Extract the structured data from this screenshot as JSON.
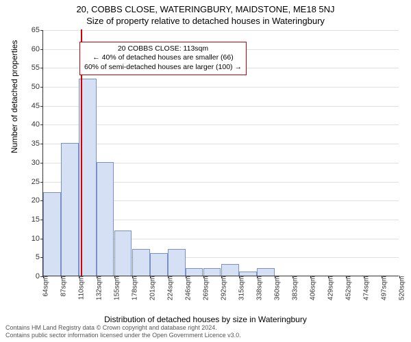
{
  "titles": {
    "line1": "20, COBBS CLOSE, WATERINGBURY, MAIDSTONE, ME18 5NJ",
    "line2": "Size of property relative to detached houses in Wateringbury"
  },
  "ylabel": "Number of detached properties",
  "xlabel": "Distribution of detached houses by size in Wateringbury",
  "chart": {
    "type": "histogram",
    "ylim": [
      0,
      65
    ],
    "ytick_step": 5,
    "xticks": [
      64,
      87,
      110,
      132,
      155,
      178,
      201,
      224,
      246,
      269,
      292,
      315,
      338,
      360,
      383,
      406,
      429,
      452,
      474,
      497,
      520
    ],
    "xtick_suffix": "sqm",
    "bars": [
      {
        "x": 64,
        "h": 22
      },
      {
        "x": 87,
        "h": 35
      },
      {
        "x": 110,
        "h": 52
      },
      {
        "x": 132,
        "h": 30
      },
      {
        "x": 155,
        "h": 12
      },
      {
        "x": 178,
        "h": 7
      },
      {
        "x": 201,
        "h": 6
      },
      {
        "x": 224,
        "h": 7
      },
      {
        "x": 246,
        "h": 2
      },
      {
        "x": 269,
        "h": 2
      },
      {
        "x": 292,
        "h": 3
      },
      {
        "x": 315,
        "h": 1
      },
      {
        "x": 338,
        "h": 2
      },
      {
        "x": 360,
        "h": 0
      },
      {
        "x": 383,
        "h": 0
      },
      {
        "x": 406,
        "h": 0
      },
      {
        "x": 429,
        "h": 0
      },
      {
        "x": 452,
        "h": 0
      },
      {
        "x": 474,
        "h": 0
      },
      {
        "x": 497,
        "h": 0
      }
    ],
    "bar_fill": "#d6e0f5",
    "bar_stroke": "#7a8fc7",
    "grid_color": "#e0e0e0",
    "background_color": "#ffffff",
    "marker": {
      "x": 113,
      "color": "#d40000"
    }
  },
  "callout": {
    "line1": "20 COBBS CLOSE: 113sqm",
    "line2": "← 40% of detached houses are smaller (66)",
    "line3": "60% of semi-detached houses are larger (100) →",
    "border_color": "#d40000"
  },
  "footer": {
    "line1": "Contains HM Land Registry data © Crown copyright and database right 2024.",
    "line2": "Contains public sector information licensed under the Open Government Licence v3.0."
  }
}
